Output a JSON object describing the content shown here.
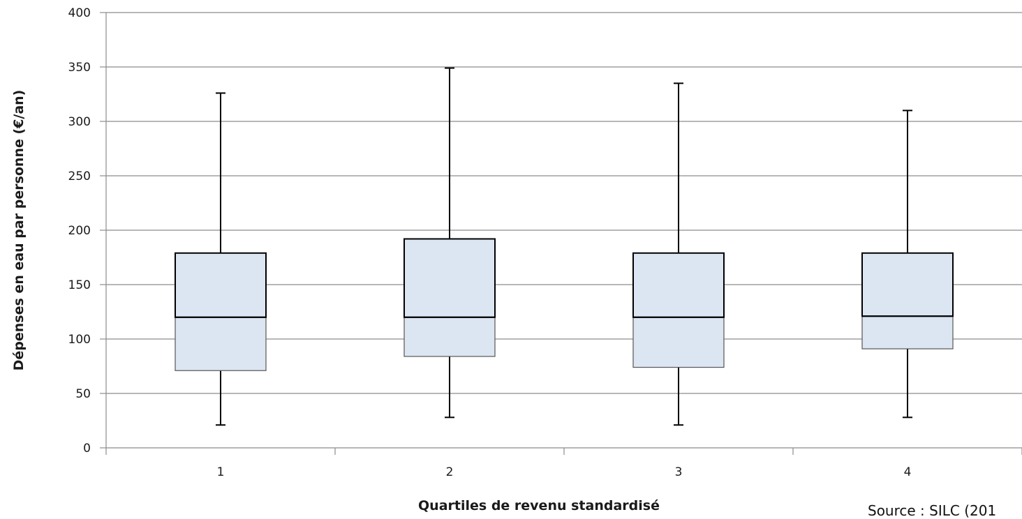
{
  "chart_data": {
    "type": "boxplot",
    "xlabel": "Quartiles de revenu standardisé",
    "ylabel": "Dépenses en eau par personne (€/an)",
    "ylim": [
      0,
      400
    ],
    "yticks": [
      0,
      50,
      100,
      150,
      200,
      250,
      300,
      350,
      400
    ],
    "grid": true,
    "categories": [
      "1",
      "2",
      "3",
      "4"
    ],
    "boxes": [
      {
        "category": "1",
        "min": 21,
        "q1": 71,
        "median": 120,
        "q3": 179,
        "max": 326
      },
      {
        "category": "2",
        "min": 28,
        "q1": 84,
        "median": 120,
        "q3": 192,
        "max": 349
      },
      {
        "category": "3",
        "min": 21,
        "q1": 74,
        "median": 120,
        "q3": 179,
        "max": 335
      },
      {
        "category": "4",
        "min": 28,
        "q1": 91,
        "median": 121,
        "q3": 179,
        "max": 310
      }
    ],
    "box_color": "#dce6f2",
    "source": "Source : SILC (201"
  }
}
